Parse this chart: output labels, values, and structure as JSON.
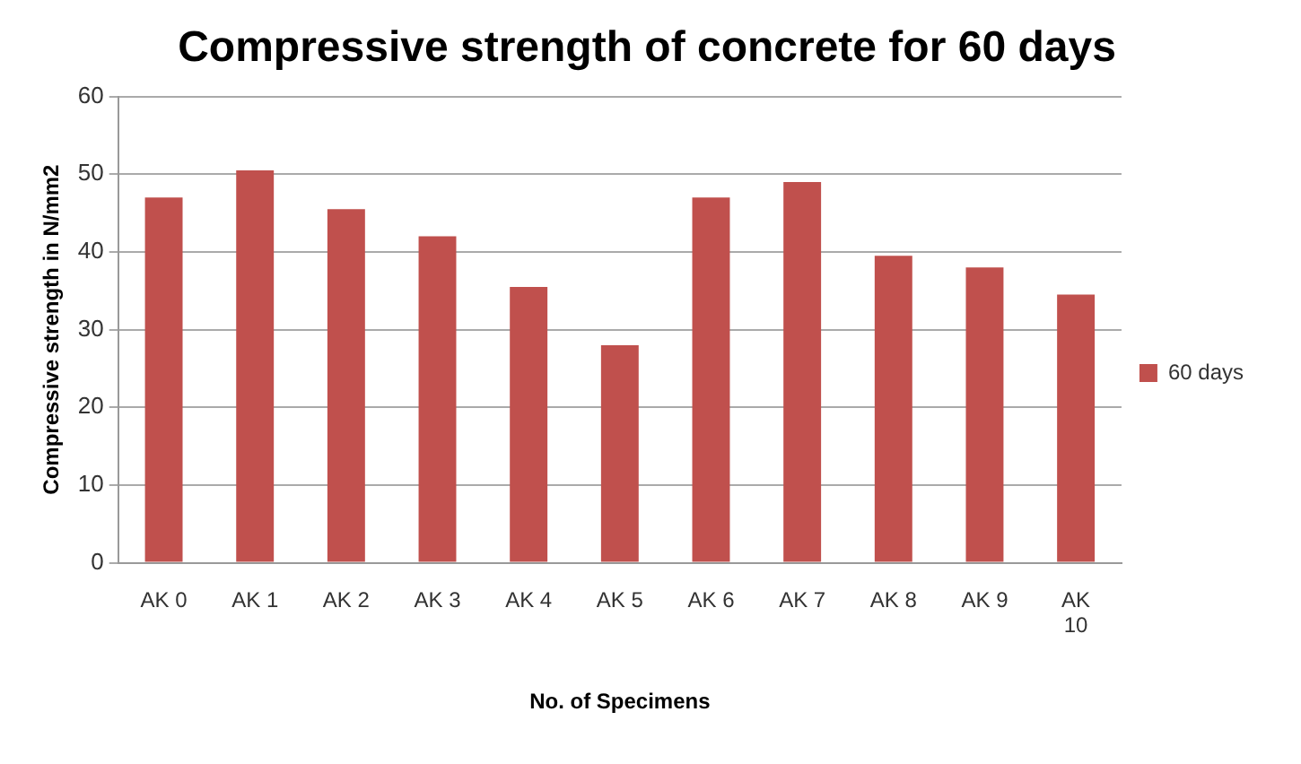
{
  "chart_data": {
    "type": "bar",
    "title": "Compressive strength of concrete for 60 days",
    "xlabel": "No. of Specimens",
    "ylabel": "Compressive strength in N/mm2",
    "categories": [
      "AK 0",
      "AK 1",
      "AK 2",
      "AK 3",
      "AK 4",
      "AK 5",
      "AK 6",
      "AK 7",
      "AK 8",
      "AK 9",
      "AK 10"
    ],
    "series": [
      {
        "name": "60 days",
        "color": "#c0504d",
        "values": [
          47,
          50.5,
          45.5,
          42,
          35.5,
          28,
          47,
          49,
          39.5,
          38,
          34.5
        ]
      }
    ],
    "ylim": [
      0,
      60
    ],
    "yticks": [
      0,
      10,
      20,
      30,
      40,
      50,
      60
    ],
    "grid": "y",
    "legend": "right"
  }
}
